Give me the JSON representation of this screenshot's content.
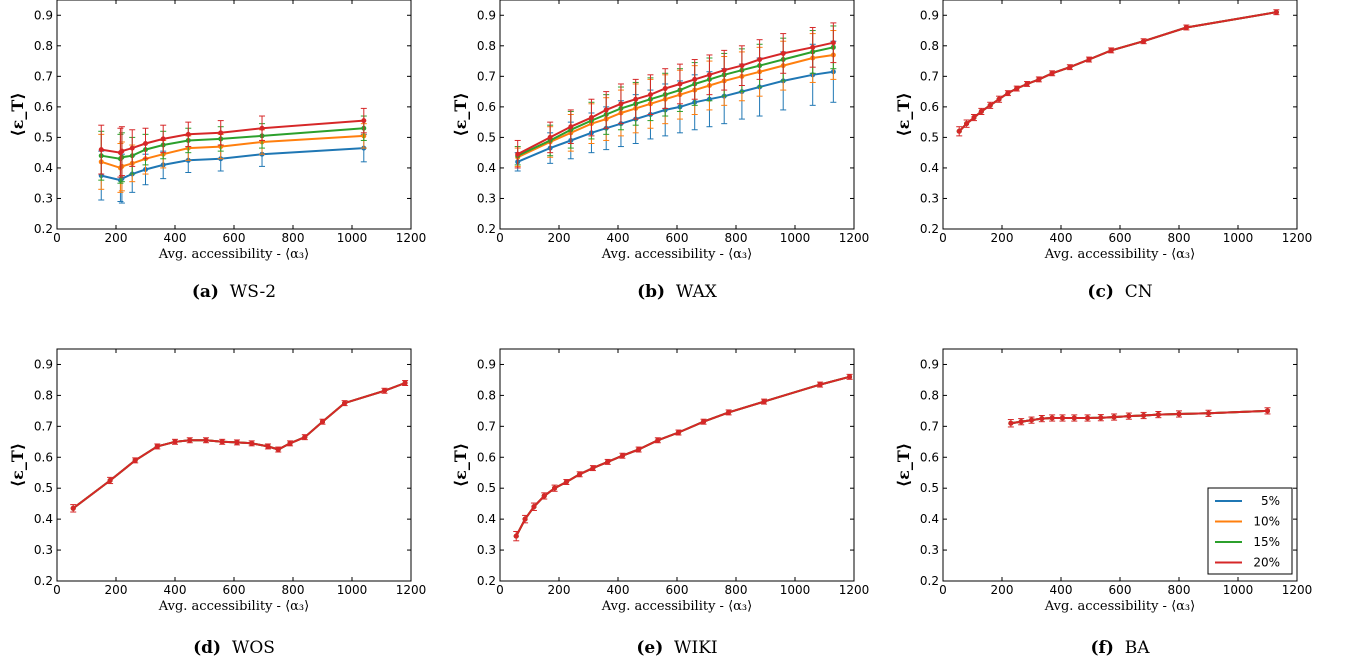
{
  "series_colors": {
    "5%": "#1f77b4",
    "10%": "#ff7f0e",
    "15%": "#2ca02c",
    "20%": "#d62728"
  },
  "legend": {
    "entries": [
      "5%",
      "10%",
      "15%",
      "20%"
    ],
    "placement": "lower-right",
    "panel": "BA"
  },
  "chart_data": [
    {
      "type": "line",
      "letter": "(a)",
      "name": "WS-2",
      "xlabel": "Avg. accessibility - ⟨α₃⟩",
      "ylabel": "⟨ε_T⟩",
      "xlim": [
        0,
        1200
      ],
      "ylim": [
        0.2,
        0.95
      ],
      "xticks": [
        0,
        200,
        400,
        600,
        800,
        1000,
        1200
      ],
      "yticks": [
        0.2,
        0.3,
        0.4,
        0.5,
        0.6,
        0.7,
        0.8,
        0.9
      ],
      "x": [
        150,
        215,
        220,
        255,
        300,
        360,
        445,
        555,
        695,
        1040
      ],
      "series": [
        {
          "name": "5%",
          "values": [
            0.375,
            0.36,
            0.365,
            0.38,
            0.395,
            0.41,
            0.425,
            0.43,
            0.445,
            0.465
          ],
          "err": [
            0.08,
            0.07,
            0.08,
            0.06,
            0.05,
            0.045,
            0.04,
            0.04,
            0.04,
            0.045
          ]
        },
        {
          "name": "10%",
          "values": [
            0.42,
            0.4,
            0.405,
            0.415,
            0.43,
            0.445,
            0.465,
            0.47,
            0.485,
            0.505
          ],
          "err": [
            0.09,
            0.08,
            0.08,
            0.06,
            0.05,
            0.045,
            0.04,
            0.04,
            0.04,
            0.04
          ]
        },
        {
          "name": "15%",
          "values": [
            0.44,
            0.43,
            0.435,
            0.44,
            0.46,
            0.475,
            0.49,
            0.495,
            0.505,
            0.53
          ],
          "err": [
            0.08,
            0.08,
            0.08,
            0.06,
            0.05,
            0.045,
            0.04,
            0.04,
            0.04,
            0.04
          ]
        },
        {
          "name": "20%",
          "values": [
            0.46,
            0.45,
            0.455,
            0.465,
            0.48,
            0.495,
            0.51,
            0.515,
            0.53,
            0.555
          ],
          "err": [
            0.08,
            0.08,
            0.08,
            0.06,
            0.05,
            0.045,
            0.04,
            0.04,
            0.04,
            0.04
          ]
        }
      ]
    },
    {
      "type": "line",
      "letter": "(b)",
      "name": "WAX",
      "xlabel": "Avg. accessibility - ⟨α₃⟩",
      "ylabel": "⟨ε_T⟩",
      "xlim": [
        0,
        1200
      ],
      "ylim": [
        0.2,
        0.95
      ],
      "xticks": [
        0,
        200,
        400,
        600,
        800,
        1000,
        1200
      ],
      "yticks": [
        0.2,
        0.3,
        0.4,
        0.5,
        0.6,
        0.7,
        0.8,
        0.9
      ],
      "x": [
        60,
        170,
        240,
        310,
        360,
        410,
        460,
        510,
        560,
        610,
        660,
        710,
        760,
        820,
        880,
        960,
        1060,
        1130
      ],
      "series": [
        {
          "name": "5%",
          "values": [
            0.42,
            0.465,
            0.49,
            0.515,
            0.53,
            0.545,
            0.56,
            0.575,
            0.59,
            0.6,
            0.615,
            0.625,
            0.635,
            0.65,
            0.665,
            0.685,
            0.705,
            0.715
          ],
          "err": [
            0.03,
            0.05,
            0.06,
            0.065,
            0.07,
            0.075,
            0.08,
            0.08,
            0.085,
            0.085,
            0.09,
            0.09,
            0.09,
            0.09,
            0.095,
            0.095,
            0.1,
            0.1
          ]
        },
        {
          "name": "10%",
          "values": [
            0.435,
            0.485,
            0.515,
            0.545,
            0.56,
            0.58,
            0.595,
            0.61,
            0.625,
            0.64,
            0.655,
            0.67,
            0.685,
            0.7,
            0.715,
            0.735,
            0.76,
            0.77
          ],
          "err": [
            0.03,
            0.05,
            0.06,
            0.065,
            0.07,
            0.075,
            0.08,
            0.08,
            0.08,
            0.08,
            0.08,
            0.08,
            0.08,
            0.08,
            0.08,
            0.08,
            0.08,
            0.08
          ]
        },
        {
          "name": "15%",
          "values": [
            0.44,
            0.49,
            0.525,
            0.555,
            0.575,
            0.595,
            0.61,
            0.625,
            0.64,
            0.655,
            0.675,
            0.69,
            0.705,
            0.72,
            0.735,
            0.755,
            0.78,
            0.795
          ],
          "err": [
            0.03,
            0.05,
            0.06,
            0.06,
            0.065,
            0.07,
            0.07,
            0.07,
            0.07,
            0.07,
            0.07,
            0.07,
            0.07,
            0.07,
            0.07,
            0.07,
            0.07,
            0.07
          ]
        },
        {
          "name": "20%",
          "values": [
            0.445,
            0.5,
            0.535,
            0.565,
            0.59,
            0.61,
            0.625,
            0.64,
            0.66,
            0.675,
            0.69,
            0.705,
            0.72,
            0.735,
            0.755,
            0.775,
            0.795,
            0.81
          ],
          "err": [
            0.045,
            0.05,
            0.055,
            0.06,
            0.06,
            0.065,
            0.065,
            0.065,
            0.065,
            0.065,
            0.065,
            0.065,
            0.065,
            0.065,
            0.065,
            0.065,
            0.065,
            0.065
          ]
        }
      ]
    },
    {
      "type": "line",
      "letter": "(c)",
      "name": "CN",
      "xlabel": "Avg. accessibility - ⟨α₃⟩",
      "ylabel": "⟨ε_T⟩",
      "xlim": [
        0,
        1200
      ],
      "ylim": [
        0.2,
        0.95
      ],
      "xticks": [
        0,
        200,
        400,
        600,
        800,
        1000,
        1200
      ],
      "yticks": [
        0.2,
        0.3,
        0.4,
        0.5,
        0.6,
        0.7,
        0.8,
        0.9
      ],
      "x": [
        55,
        80,
        105,
        130,
        160,
        190,
        220,
        250,
        285,
        325,
        370,
        430,
        495,
        570,
        680,
        825,
        1130
      ],
      "series": [
        {
          "name": "5%",
          "values": [
            0.52,
            0.545,
            0.565,
            0.585,
            0.605,
            0.625,
            0.645,
            0.66,
            0.675,
            0.69,
            0.71,
            0.73,
            0.755,
            0.785,
            0.815,
            0.86,
            0.91
          ]
        },
        {
          "name": "10%",
          "values": [
            0.52,
            0.545,
            0.565,
            0.585,
            0.605,
            0.625,
            0.645,
            0.66,
            0.675,
            0.69,
            0.71,
            0.73,
            0.755,
            0.785,
            0.815,
            0.86,
            0.91
          ]
        },
        {
          "name": "15%",
          "values": [
            0.52,
            0.545,
            0.565,
            0.585,
            0.605,
            0.625,
            0.645,
            0.66,
            0.675,
            0.69,
            0.71,
            0.73,
            0.755,
            0.785,
            0.815,
            0.86,
            0.91
          ]
        },
        {
          "name": "20%",
          "values": [
            0.52,
            0.545,
            0.565,
            0.585,
            0.605,
            0.625,
            0.645,
            0.66,
            0.675,
            0.69,
            0.71,
            0.73,
            0.755,
            0.785,
            0.815,
            0.86,
            0.91
          ],
          "err": [
            0.015,
            0.012,
            0.01,
            0.01,
            0.01,
            0.01,
            0.008,
            0.008,
            0.008,
            0.008,
            0.008,
            0.008,
            0.008,
            0.008,
            0.008,
            0.008,
            0.008
          ]
        }
      ]
    },
    {
      "type": "line",
      "letter": "(d)",
      "name": "WOS",
      "xlabel": "Avg. accessibility - ⟨α₃⟩",
      "ylabel": "⟨ε_T⟩",
      "xlim": [
        0,
        1200
      ],
      "ylim": [
        0.2,
        0.95
      ],
      "xticks": [
        0,
        200,
        400,
        600,
        800,
        1000,
        1200
      ],
      "yticks": [
        0.2,
        0.3,
        0.4,
        0.5,
        0.6,
        0.7,
        0.8,
        0.9
      ],
      "x": [
        55,
        180,
        265,
        340,
        400,
        450,
        505,
        560,
        610,
        660,
        715,
        750,
        790,
        840,
        900,
        975,
        1110,
        1180
      ],
      "series": [
        {
          "name": "5%",
          "values": [
            0.435,
            0.525,
            0.59,
            0.635,
            0.65,
            0.655,
            0.655,
            0.65,
            0.648,
            0.645,
            0.635,
            0.625,
            0.645,
            0.665,
            0.715,
            0.775,
            0.815,
            0.84
          ]
        },
        {
          "name": "10%",
          "values": [
            0.435,
            0.525,
            0.59,
            0.635,
            0.65,
            0.655,
            0.655,
            0.65,
            0.648,
            0.645,
            0.635,
            0.625,
            0.645,
            0.665,
            0.715,
            0.775,
            0.815,
            0.84
          ]
        },
        {
          "name": "15%",
          "values": [
            0.435,
            0.525,
            0.59,
            0.635,
            0.65,
            0.655,
            0.655,
            0.65,
            0.648,
            0.645,
            0.635,
            0.625,
            0.645,
            0.665,
            0.715,
            0.775,
            0.815,
            0.84
          ]
        },
        {
          "name": "20%",
          "values": [
            0.435,
            0.525,
            0.59,
            0.635,
            0.65,
            0.655,
            0.655,
            0.65,
            0.648,
            0.645,
            0.635,
            0.625,
            0.645,
            0.665,
            0.715,
            0.775,
            0.815,
            0.84
          ],
          "err": [
            0.012,
            0.01,
            0.008,
            0.008,
            0.008,
            0.008,
            0.008,
            0.008,
            0.008,
            0.008,
            0.008,
            0.008,
            0.008,
            0.008,
            0.008,
            0.008,
            0.008,
            0.008
          ]
        }
      ]
    },
    {
      "type": "line",
      "letter": "(e)",
      "name": "WIKI",
      "xlabel": "Avg. accessibility - ⟨α₃⟩",
      "ylabel": "⟨ε_T⟩",
      "xlim": [
        0,
        1200
      ],
      "ylim": [
        0.2,
        0.95
      ],
      "xticks": [
        0,
        200,
        400,
        600,
        800,
        1000,
        1200
      ],
      "yticks": [
        0.2,
        0.3,
        0.4,
        0.5,
        0.6,
        0.7,
        0.8,
        0.9
      ],
      "x": [
        55,
        85,
        115,
        150,
        185,
        225,
        270,
        315,
        365,
        415,
        470,
        535,
        605,
        690,
        775,
        895,
        1085,
        1185
      ],
      "series": [
        {
          "name": "5%",
          "values": [
            0.345,
            0.4,
            0.44,
            0.475,
            0.5,
            0.52,
            0.545,
            0.565,
            0.585,
            0.605,
            0.625,
            0.655,
            0.68,
            0.715,
            0.745,
            0.78,
            0.835,
            0.86
          ]
        },
        {
          "name": "10%",
          "values": [
            0.345,
            0.4,
            0.44,
            0.475,
            0.5,
            0.52,
            0.545,
            0.565,
            0.585,
            0.605,
            0.625,
            0.655,
            0.68,
            0.715,
            0.745,
            0.78,
            0.835,
            0.86
          ]
        },
        {
          "name": "15%",
          "values": [
            0.345,
            0.4,
            0.44,
            0.475,
            0.5,
            0.52,
            0.545,
            0.565,
            0.585,
            0.605,
            0.625,
            0.655,
            0.68,
            0.715,
            0.745,
            0.78,
            0.835,
            0.86
          ]
        },
        {
          "name": "20%",
          "values": [
            0.345,
            0.4,
            0.44,
            0.475,
            0.5,
            0.52,
            0.545,
            0.565,
            0.585,
            0.605,
            0.625,
            0.655,
            0.68,
            0.715,
            0.745,
            0.78,
            0.835,
            0.86
          ],
          "err": [
            0.015,
            0.012,
            0.012,
            0.01,
            0.01,
            0.008,
            0.008,
            0.008,
            0.008,
            0.008,
            0.008,
            0.008,
            0.008,
            0.008,
            0.008,
            0.008,
            0.008,
            0.008
          ]
        }
      ]
    },
    {
      "type": "line",
      "letter": "(f)",
      "name": "BA",
      "xlabel": "Avg. accessibility - ⟨α₃⟩",
      "ylabel": "⟨ε_T⟩",
      "xlim": [
        0,
        1200
      ],
      "ylim": [
        0.2,
        0.95
      ],
      "xticks": [
        0,
        200,
        400,
        600,
        800,
        1000,
        1200
      ],
      "yticks": [
        0.2,
        0.3,
        0.4,
        0.5,
        0.6,
        0.7,
        0.8,
        0.9
      ],
      "x": [
        230,
        265,
        300,
        335,
        370,
        405,
        445,
        490,
        535,
        580,
        630,
        680,
        730,
        800,
        900,
        1100
      ],
      "series": [
        {
          "name": "5%",
          "values": [
            0.71,
            0.715,
            0.72,
            0.725,
            0.727,
            0.727,
            0.727,
            0.727,
            0.728,
            0.73,
            0.733,
            0.735,
            0.738,
            0.74,
            0.742,
            0.75
          ]
        },
        {
          "name": "10%",
          "values": [
            0.71,
            0.715,
            0.72,
            0.725,
            0.727,
            0.727,
            0.727,
            0.727,
            0.728,
            0.73,
            0.733,
            0.735,
            0.738,
            0.74,
            0.742,
            0.75
          ]
        },
        {
          "name": "15%",
          "values": [
            0.71,
            0.715,
            0.72,
            0.725,
            0.727,
            0.727,
            0.727,
            0.727,
            0.728,
            0.73,
            0.733,
            0.735,
            0.738,
            0.74,
            0.742,
            0.75
          ]
        },
        {
          "name": "20%",
          "values": [
            0.71,
            0.715,
            0.72,
            0.725,
            0.727,
            0.727,
            0.727,
            0.727,
            0.728,
            0.73,
            0.733,
            0.735,
            0.738,
            0.74,
            0.742,
            0.75
          ],
          "err": [
            0.012,
            0.01,
            0.01,
            0.01,
            0.01,
            0.01,
            0.01,
            0.01,
            0.01,
            0.01,
            0.01,
            0.01,
            0.01,
            0.01,
            0.01,
            0.01
          ]
        }
      ]
    }
  ]
}
